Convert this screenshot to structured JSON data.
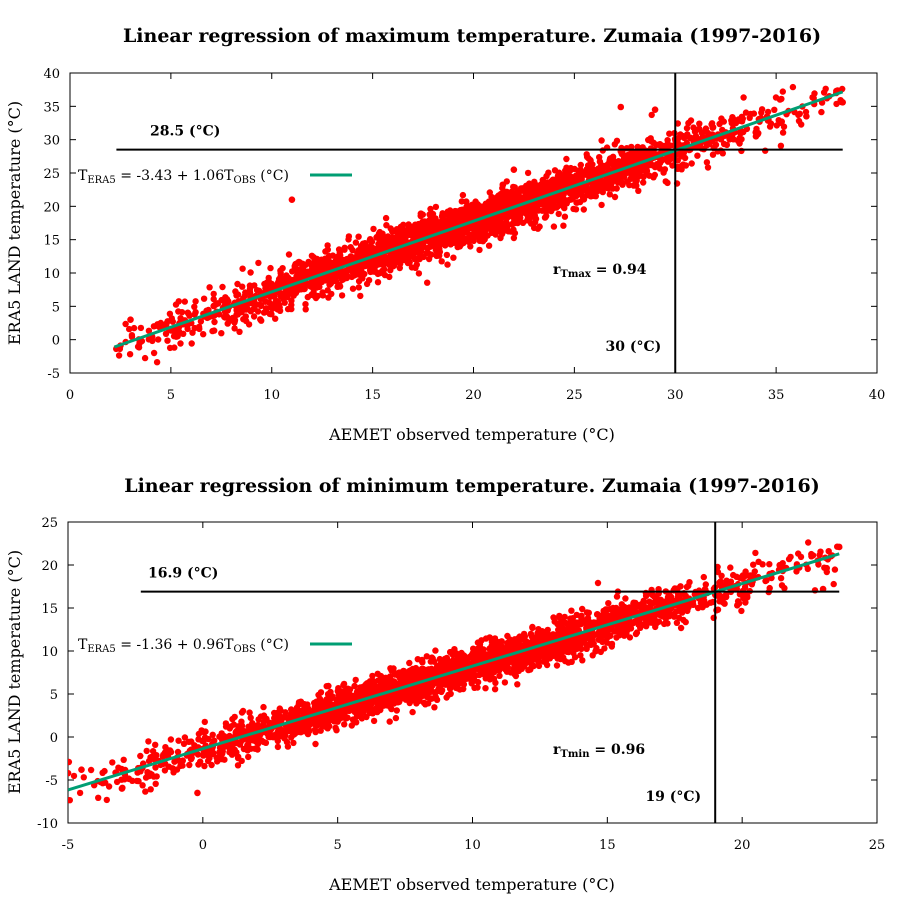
{
  "chart_data": [
    {
      "type": "scatter",
      "title": "Linear regression of maximum temperature. Zumaia (1997-2016)",
      "xlabel": "AEMET observed temperature (°C)",
      "ylabel": "ERA5 LAND temperature (°C)",
      "xlim": [
        0,
        40
      ],
      "ylim": [
        -5,
        40
      ],
      "xticks": [
        "0",
        "5",
        "10",
        "15",
        "20",
        "25",
        "30",
        "35",
        "40"
      ],
      "yticks": [
        "-5",
        "0",
        "5",
        "10",
        "15",
        "20",
        "25",
        "30",
        "35",
        "40"
      ],
      "regression": {
        "intercept": -3.43,
        "slope": 1.06,
        "x_range": [
          2.2,
          38.3
        ],
        "color": "#009e73"
      },
      "legend": {
        "prefix": "T",
        "sub1": "ERA5",
        "mid": " = -3.43 + 1.06T",
        "sub2": "OBS",
        "suffix": " (°C)"
      },
      "point_color": "#ff0000",
      "scatter_cloud": {
        "x_range": [
          2.2,
          38.3
        ],
        "band_spread": 4.0
      },
      "notable_points": [
        [
          2.5,
          -0.9
        ],
        [
          3.0,
          3.0
        ],
        [
          11.0,
          21.0
        ],
        [
          38.3,
          35.6
        ],
        [
          29.0,
          34.5
        ],
        [
          27.3,
          34.9
        ],
        [
          36.5,
          33.5
        ],
        [
          33.0,
          32.5
        ],
        [
          34.0,
          30.5
        ],
        [
          22.0,
          25.5
        ]
      ],
      "hline": {
        "y": 28.5,
        "label": "28.5 (°C)",
        "x_from": 2.3,
        "x_to": 38.3
      },
      "vline": {
        "x": 30,
        "label": "30 (°C)"
      },
      "r_label": {
        "r": "r",
        "sub": "Tmax",
        "value": " = 0.94"
      }
    },
    {
      "type": "scatter",
      "title": "Linear regression of minimum temperature. Zumaia (1997-2016)",
      "xlabel": "AEMET observed temperature (°C)",
      "ylabel": "ERA5 LAND temperature (°C)",
      "xlim": [
        -5,
        25
      ],
      "ylim": [
        -10,
        25
      ],
      "xticks": [
        "-5",
        "0",
        "5",
        "10",
        "15",
        "20",
        "25"
      ],
      "yticks": [
        "-10",
        "-5",
        "0",
        "5",
        "10",
        "15",
        "20",
        "25"
      ],
      "regression": {
        "intercept": -1.36,
        "slope": 0.96,
        "x_range": [
          -5.0,
          23.6
        ],
        "color": "#009e73"
      },
      "legend": {
        "prefix": "T",
        "sub1": "ERA5",
        "mid": " = -1.36 + 0.96T",
        "sub2": "OBS",
        "suffix": " (°C)"
      },
      "point_color": "#ff0000",
      "scatter_cloud": {
        "x_range": [
          -5.0,
          23.6
        ],
        "band_spread": 2.8
      },
      "notable_points": [
        [
          -5.0,
          -4.2
        ],
        [
          -4.5,
          -3.8
        ],
        [
          -3.0,
          -6.0
        ],
        [
          -0.2,
          -6.5
        ],
        [
          23.6,
          22.1
        ],
        [
          23.0,
          17.2
        ],
        [
          22.8,
          20.5
        ]
      ],
      "hline": {
        "y": 16.9,
        "label": "16.9 (°C)",
        "x_from": -2.3,
        "x_to": 23.6
      },
      "vline": {
        "x": 19,
        "label": "19 (°C)"
      },
      "r_label": {
        "r": "r",
        "sub": "Tmin",
        "value": " = 0.96"
      }
    }
  ]
}
